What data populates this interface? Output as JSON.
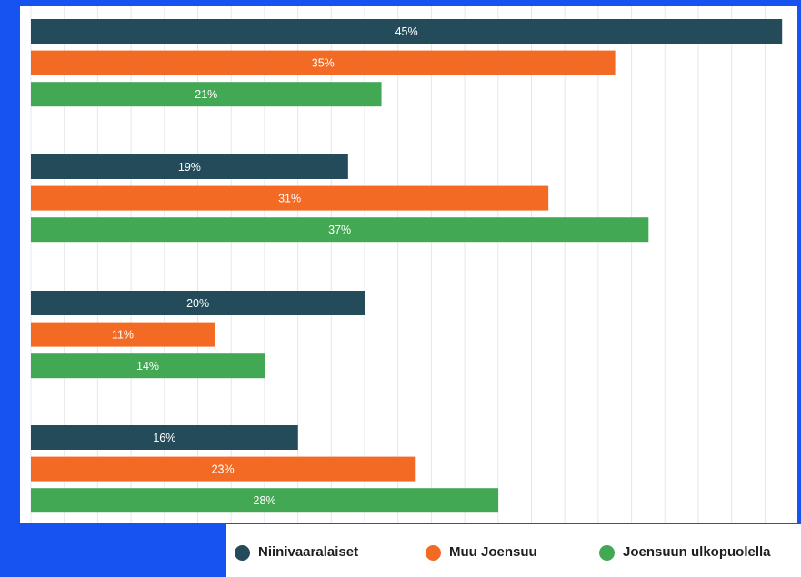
{
  "chart_data": {
    "type": "bar",
    "orientation": "horizontal",
    "categories": [
      "",
      "",
      "",
      ""
    ],
    "series": [
      {
        "name": "Niinivaaralaiset",
        "color": "#234b5a",
        "values": [
          45,
          19,
          20,
          16
        ],
        "labels": [
          "45%",
          "19%",
          "20%",
          "16%"
        ]
      },
      {
        "name": "Muu Joensuu",
        "color": "#f26a24",
        "values": [
          35,
          31,
          11,
          23
        ],
        "labels": [
          "35%",
          "31%",
          "11%",
          "23%"
        ]
      },
      {
        "name": "Joensuun ulkopuolella",
        "color": "#43a853",
        "values": [
          21,
          37,
          14,
          28
        ],
        "labels": [
          "21%",
          "37%",
          "14%",
          "28%"
        ]
      }
    ],
    "unit": "%",
    "xlim": [
      0,
      45
    ],
    "grid": true,
    "legend_position": "bottom-right"
  },
  "legend": {
    "items": [
      {
        "label": "Niinivaaralaiset",
        "color": "#234b5a",
        "marker": "circle-marker"
      },
      {
        "label": "Muu Joensuu",
        "color": "#f26a24",
        "marker": "circle-marker"
      },
      {
        "label": "Joensuun ulkopuolella",
        "color": "#43a853",
        "marker": "circle-marker"
      }
    ]
  },
  "colors": {
    "frame": "#1753f0",
    "panel": "#ffffff",
    "grid": "#e3e7ec",
    "data_label": "#ffffff"
  }
}
